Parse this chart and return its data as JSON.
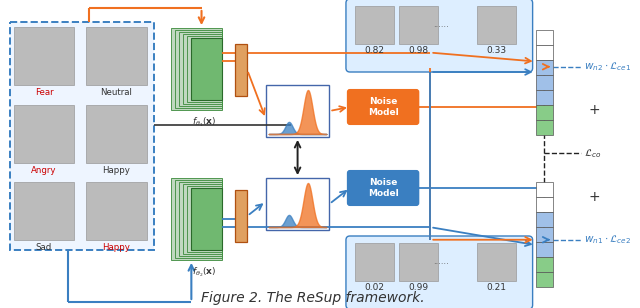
{
  "title": "Figure 2. The ReSup framework.",
  "title_fontsize": 10,
  "fig_width": 6.4,
  "fig_height": 3.08,
  "bg_color": "#ffffff",
  "orange": "#F07020",
  "blue": "#3A7FC1",
  "green": "#5cb85c",
  "light_blue_fill": "#ddeeff",
  "bar_white": "#ffffff",
  "bar_blue": "#a0c0e8",
  "bar_green": "#88cc88",
  "fear_color": "#cc0000",
  "angry_color": "#cc0000",
  "happy_color": "#cc0000",
  "labels": {
    "f_theta1": "$f_{\\theta_1}(\\mathbf{x})$",
    "f_theta2": "$f_{\\theta_2}(\\mathbf{x})$",
    "noise_model": "Noise\nModel",
    "w_n2_Lce1": "$w_{n2}\\cdot\\mathcal{L}_{ce1}$",
    "w_n1_Lce2": "$w_{n1}\\cdot\\mathcal{L}_{ce2}$",
    "L_co": "$\\mathcal{L}_{co}$",
    "scores_top": [
      "0.82",
      "0.98",
      "0.33"
    ],
    "scores_bottom": [
      "0.02",
      "0.99",
      "0.21"
    ]
  }
}
